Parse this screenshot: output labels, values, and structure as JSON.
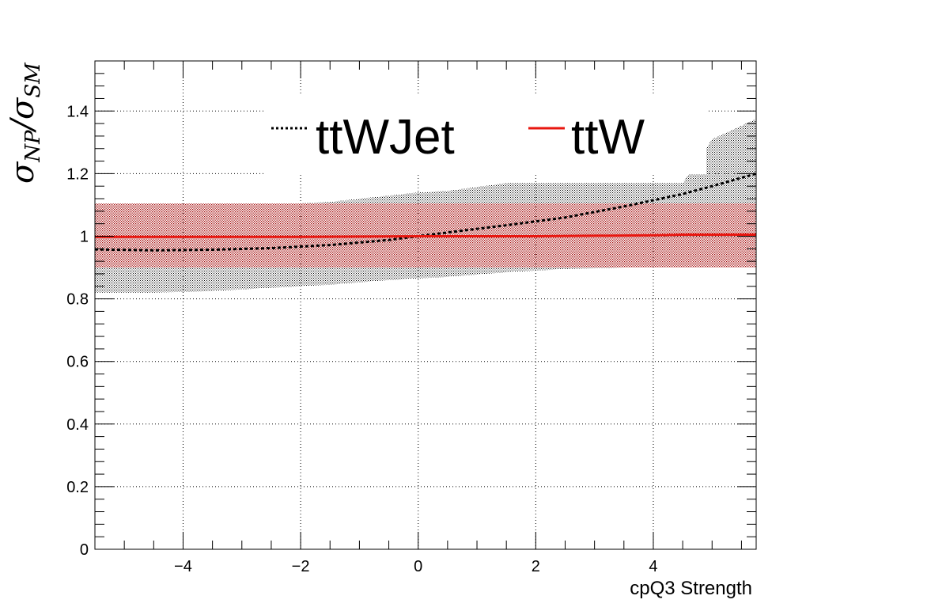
{
  "chart_data": {
    "type": "line",
    "title": "",
    "xlabel": "cpQ3 Strength",
    "ylabel": {
      "symbol": "σ",
      "numerator_sub": "NP",
      "slash": "/",
      "denominator_sub": "SM"
    },
    "xlim": [
      -5.5,
      5.75
    ],
    "ylim": [
      0,
      1.56
    ],
    "x_ticks": [
      -4,
      -2,
      0,
      2,
      4
    ],
    "x_tick_labels": [
      "−4",
      "−2",
      "0",
      "2",
      "4"
    ],
    "y_ticks": [
      0,
      0.2,
      0.4,
      0.6,
      0.8,
      1,
      1.2,
      1.4
    ],
    "y_tick_labels": [
      "0",
      "0.2",
      "0.4",
      "0.6",
      "0.8",
      "1",
      "1.2",
      "1.4"
    ],
    "grid": true,
    "legend_position": "top",
    "series": [
      {
        "name": "ttWJet",
        "color": "#000000",
        "line_style": "dotted",
        "band_color": "#000000",
        "x": [
          -5.5,
          -4.5,
          -3.5,
          -2.5,
          -1.5,
          -0.5,
          0,
          0.5,
          1.5,
          2.5,
          3.5,
          4.5,
          5.0,
          5.75
        ],
        "y": [
          0.958,
          0.955,
          0.957,
          0.962,
          0.972,
          0.988,
          1.0,
          1.012,
          1.035,
          1.06,
          1.095,
          1.135,
          1.16,
          1.2
        ],
        "band_low": [
          0.82,
          0.82,
          0.825,
          0.835,
          0.845,
          0.86,
          0.865,
          0.87,
          0.885,
          0.895,
          0.9,
          0.9,
          0.9,
          0.9
        ],
        "band_high": [
          1.1,
          1.1,
          1.1,
          1.1,
          1.11,
          1.13,
          1.14,
          1.145,
          1.17,
          1.17,
          1.17,
          1.17,
          1.31,
          1.375
        ]
      },
      {
        "name": "ttW",
        "color": "#e8160f",
        "line_style": "solid",
        "band_color": "#b01010",
        "x": [
          -5.5,
          -4,
          -2,
          0,
          2,
          4,
          4.5,
          5.75
        ],
        "y": [
          0.998,
          0.998,
          0.998,
          1.0,
          1.0,
          1.003,
          1.005,
          1.005
        ],
        "band_low": [
          0.9,
          0.9,
          0.9,
          0.9,
          0.9,
          0.9,
          0.9,
          0.9
        ],
        "band_high": [
          1.105,
          1.105,
          1.105,
          1.105,
          1.105,
          1.105,
          1.105,
          1.105
        ]
      }
    ]
  }
}
